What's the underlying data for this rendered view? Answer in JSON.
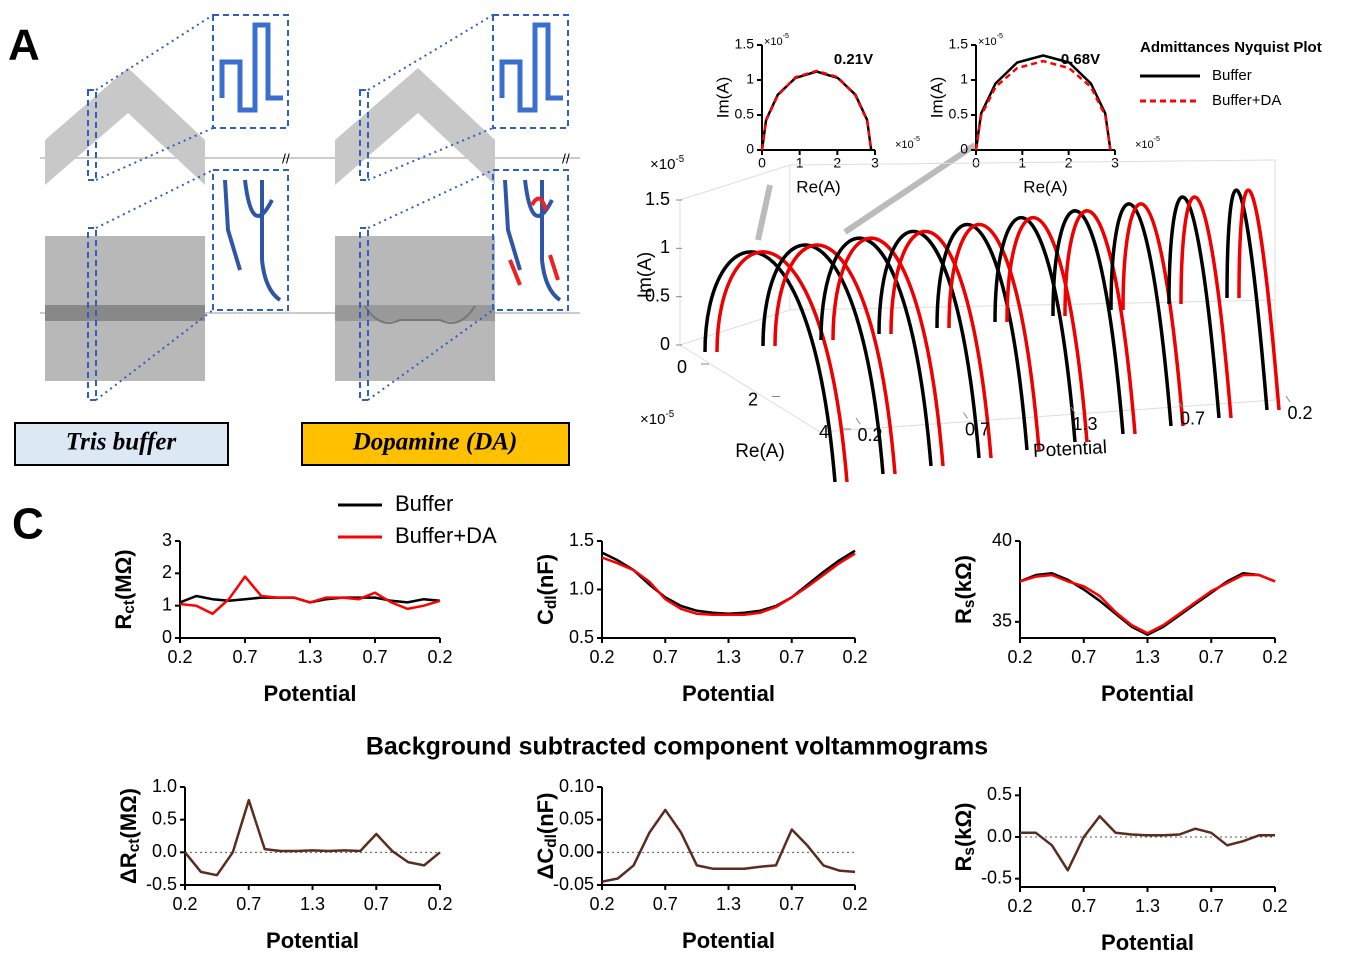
{
  "panel_labels": [
    "A",
    "C"
  ],
  "section_title": "Background subtracted component voltammograms",
  "panel_a": {
    "conditions": [
      "Tris buffer",
      "Dopamine (DA)"
    ],
    "legend": {
      "title": "Admittances Nyquist Plot",
      "items": [
        {
          "name": "Buffer",
          "color": "#000000",
          "dash": false
        },
        {
          "name": "Buffer+DA",
          "color": "#ff0000",
          "dash": true
        }
      ]
    },
    "insets": [
      {
        "type": "line",
        "annotation": "0.21V",
        "xlabel": "Re(A)",
        "ylabel": "Im(A)",
        "exponent_label": [
          "×10",
          "-5"
        ],
        "xlim": [
          0,
          3
        ],
        "ylim": [
          0,
          1.5
        ],
        "xticks": [
          0,
          1,
          2,
          3
        ],
        "yticks": [
          0,
          0.5,
          1,
          1.5
        ],
        "x": [
          0,
          0.11,
          0.42,
          0.89,
          1.45,
          2.01,
          2.48,
          2.79,
          2.9
        ],
        "series": [
          {
            "color": "#000000",
            "dash": false,
            "values": [
              0,
              0.43,
              0.79,
              1.03,
              1.12,
              1.03,
              0.79,
              0.43,
              0
            ]
          },
          {
            "color": "#ff0000",
            "dash": true,
            "values": [
              0,
              0.42,
              0.78,
              1.04,
              1.13,
              1.04,
              0.78,
              0.42,
              0
            ]
          }
        ]
      },
      {
        "type": "line",
        "annotation": "0.68V",
        "xlabel": "Re(A)",
        "ylabel": "Im(A)",
        "exponent_label": [
          "×10",
          "-5"
        ],
        "xlim": [
          0,
          3
        ],
        "ylim": [
          0,
          1.5
        ],
        "xticks": [
          0,
          1,
          2,
          3
        ],
        "yticks": [
          0,
          0.5,
          1,
          1.5
        ],
        "x": [
          0,
          0.11,
          0.42,
          0.89,
          1.45,
          2.01,
          2.48,
          2.79,
          2.9
        ],
        "series": [
          {
            "color": "#000000",
            "dash": false,
            "values": [
              0,
              0.52,
              0.95,
              1.25,
              1.35,
              1.25,
              0.95,
              0.52,
              0
            ]
          },
          {
            "color": "#ff0000",
            "dash": true,
            "values": [
              0,
              0.49,
              0.9,
              1.17,
              1.27,
              1.17,
              0.9,
              0.49,
              0
            ]
          }
        ]
      }
    ],
    "nyquist_3d": {
      "zlabel": "Im(A)",
      "ylabel": "Re(A)",
      "xlabel": "Potential",
      "exponent_label": [
        "×10",
        "-5"
      ],
      "zlim": [
        0,
        1.5
      ],
      "zticks": [
        0,
        0.5,
        1,
        1.5
      ],
      "ylim": [
        0,
        4
      ],
      "yticks": [
        0,
        2,
        4
      ],
      "xlim": [
        0,
        4
      ],
      "xticks": [
        {
          "value": 0,
          "label": "0.2"
        },
        {
          "value": 1,
          "label": "0.7"
        },
        {
          "value": 2,
          "label": "1.3"
        },
        {
          "value": 3,
          "label": "0.7"
        },
        {
          "value": 4,
          "label": "0.2"
        }
      ]
    }
  },
  "chart_data": [
    {
      "type": "line",
      "ylabel": [
        "R",
        "ct",
        "(MΩ)"
      ],
      "xlabel": "Potential",
      "xlim": [
        0,
        4
      ],
      "ylim": [
        0,
        3
      ],
      "yticks": [
        0,
        1,
        2,
        3
      ],
      "xticks": [
        {
          "value": 0,
          "label": "0.2"
        },
        {
          "value": 1,
          "label": "0.7"
        },
        {
          "value": 2,
          "label": "1.3"
        },
        {
          "value": 3,
          "label": "0.7"
        },
        {
          "value": 4,
          "label": "0.2"
        }
      ],
      "x": [
        0,
        0.25,
        0.5,
        0.75,
        1,
        1.25,
        1.5,
        1.75,
        2,
        2.25,
        2.5,
        2.75,
        3,
        3.25,
        3.5,
        3.75,
        4
      ],
      "series": [
        {
          "name": "Buffer",
          "color": "#000000",
          "values": [
            1.1,
            1.3,
            1.2,
            1.15,
            1.2,
            1.25,
            1.25,
            1.25,
            1.1,
            1.2,
            1.25,
            1.25,
            1.25,
            1.15,
            1.1,
            1.2,
            1.15
          ]
        },
        {
          "name": "Buffer+DA",
          "color": "#ff0000",
          "values": [
            1.05,
            1.0,
            0.75,
            1.2,
            1.9,
            1.3,
            1.25,
            1.25,
            1.1,
            1.25,
            1.25,
            1.2,
            1.4,
            1.1,
            0.9,
            1.0,
            1.15
          ]
        }
      ]
    },
    {
      "type": "line",
      "ylabel": [
        "C",
        "dl",
        "(nF)"
      ],
      "xlabel": "Potential",
      "xlim": [
        0,
        4
      ],
      "ylim": [
        0.5,
        1.5
      ],
      "yticks": [
        0.5,
        {
          "value": 1,
          "label": "1.0"
        },
        1.5
      ],
      "xticks": [
        {
          "value": 0,
          "label": "0.2"
        },
        {
          "value": 1,
          "label": "0.7"
        },
        {
          "value": 2,
          "label": "1.3"
        },
        {
          "value": 3,
          "label": "0.7"
        },
        {
          "value": 4,
          "label": "0.2"
        }
      ],
      "x": [
        0,
        0.25,
        0.5,
        0.75,
        1,
        1.25,
        1.5,
        1.75,
        2,
        2.25,
        2.5,
        2.75,
        3,
        3.25,
        3.5,
        3.75,
        4
      ],
      "series": [
        {
          "color": "#000000",
          "values": [
            1.38,
            1.3,
            1.2,
            1.05,
            0.92,
            0.83,
            0.78,
            0.76,
            0.75,
            0.76,
            0.78,
            0.83,
            0.92,
            1.05,
            1.18,
            1.3,
            1.4
          ]
        },
        {
          "color": "#ff0000",
          "values": [
            1.33,
            1.27,
            1.2,
            1.08,
            0.9,
            0.8,
            0.75,
            0.74,
            0.74,
            0.74,
            0.76,
            0.82,
            0.92,
            1.03,
            1.15,
            1.27,
            1.37
          ]
        }
      ]
    },
    {
      "type": "line",
      "ylabel": [
        "R",
        "s",
        "(kΩ)"
      ],
      "xlabel": "Potential",
      "xlim": [
        0,
        4
      ],
      "ylim": [
        34,
        40
      ],
      "yticks": [
        35,
        40
      ],
      "xticks": [
        {
          "value": 0,
          "label": "0.2"
        },
        {
          "value": 1,
          "label": "0.7"
        },
        {
          "value": 2,
          "label": "1.3"
        },
        {
          "value": 3,
          "label": "0.7"
        },
        {
          "value": 4,
          "label": "0.2"
        }
      ],
      "x": [
        0,
        0.25,
        0.5,
        0.75,
        1,
        1.25,
        1.5,
        1.75,
        2,
        2.25,
        2.5,
        2.75,
        3,
        3.25,
        3.5,
        3.75,
        4
      ],
      "series": [
        {
          "color": "#000000",
          "values": [
            37.5,
            37.9,
            38,
            37.6,
            37,
            36.3,
            35.5,
            34.7,
            34.2,
            34.7,
            35.4,
            36.1,
            36.8,
            37.5,
            38,
            37.9,
            37.5
          ]
        },
        {
          "color": "#ff0000",
          "values": [
            37.5,
            37.8,
            37.9,
            37.5,
            37.2,
            36.6,
            35.6,
            34.8,
            34.3,
            34.8,
            35.5,
            36.2,
            36.9,
            37.4,
            37.9,
            37.9,
            37.5
          ]
        }
      ]
    },
    {
      "type": "line",
      "ylabel": [
        "ΔR",
        "ct",
        "(MΩ)"
      ],
      "xlabel": "Potential",
      "xlim": [
        0,
        4
      ],
      "ylim": [
        -0.5,
        1
      ],
      "zero_line": true,
      "yticks": [
        -0.5,
        {
          "value": 0,
          "label": "0.0"
        },
        0.5,
        {
          "value": 1,
          "label": "1.0"
        }
      ],
      "xticks": [
        {
          "value": 0,
          "label": "0.2"
        },
        {
          "value": 1,
          "label": "0.7"
        },
        {
          "value": 2,
          "label": "1.3"
        },
        {
          "value": 3,
          "label": "0.7"
        },
        {
          "value": 4,
          "label": "0.2"
        }
      ],
      "x": [
        0,
        0.25,
        0.5,
        0.75,
        1,
        1.25,
        1.5,
        1.75,
        2,
        2.25,
        2.5,
        2.75,
        3,
        3.25,
        3.5,
        3.75,
        4
      ],
      "series": [
        {
          "color": "#5b2c20",
          "values": [
            0,
            -0.3,
            -0.35,
            0,
            0.8,
            0.05,
            0.02,
            0.02,
            0.03,
            0.02,
            0.03,
            0.02,
            0.28,
            0.02,
            -0.15,
            -0.2,
            0
          ]
        }
      ]
    },
    {
      "type": "line",
      "ylabel": [
        "ΔC",
        "dl",
        "(nF)"
      ],
      "xlabel": "Potential",
      "xlim": [
        0,
        4
      ],
      "ylim": [
        -0.05,
        0.1
      ],
      "zero_line": true,
      "yticks": [
        -0.05,
        {
          "value": 0,
          "label": "0.00"
        },
        0.05,
        {
          "value": 0.1,
          "label": "0.10"
        }
      ],
      "xticks": [
        {
          "value": 0,
          "label": "0.2"
        },
        {
          "value": 1,
          "label": "0.7"
        },
        {
          "value": 2,
          "label": "1.3"
        },
        {
          "value": 3,
          "label": "0.7"
        },
        {
          "value": 4,
          "label": "0.2"
        }
      ],
      "x": [
        0,
        0.25,
        0.5,
        0.75,
        1,
        1.25,
        1.5,
        1.75,
        2,
        2.25,
        2.5,
        2.75,
        3,
        3.25,
        3.5,
        3.75,
        4
      ],
      "series": [
        {
          "color": "#5b2c20",
          "values": [
            -0.045,
            -0.04,
            -0.02,
            0.03,
            0.065,
            0.03,
            -0.02,
            -0.025,
            -0.025,
            -0.025,
            -0.022,
            -0.02,
            0.035,
            0.01,
            -0.02,
            -0.028,
            -0.03
          ]
        }
      ]
    },
    {
      "type": "line",
      "ylabel": [
        "R",
        "s",
        "(kΩ)"
      ],
      "xlabel": "Potential",
      "xlim": [
        0,
        4
      ],
      "ylim": [
        -0.6,
        0.6
      ],
      "zero_line": true,
      "yticks": [
        -0.5,
        {
          "value": 0,
          "label": "0.0"
        },
        0.5
      ],
      "xticks": [
        {
          "value": 0,
          "label": "0.2"
        },
        {
          "value": 1,
          "label": "0.7"
        },
        {
          "value": 2,
          "label": "1.3"
        },
        {
          "value": 3,
          "label": "0.7"
        },
        {
          "value": 4,
          "label": "0.2"
        }
      ],
      "x": [
        0,
        0.25,
        0.5,
        0.75,
        1,
        1.25,
        1.5,
        1.75,
        2,
        2.25,
        2.5,
        2.75,
        3,
        3.25,
        3.5,
        3.75,
        4
      ],
      "series": [
        {
          "color": "#5b2c20",
          "values": [
            0.05,
            0.05,
            -0.1,
            -0.4,
            0,
            0.25,
            0.05,
            0.03,
            0.02,
            0.02,
            0.03,
            0.1,
            0.05,
            -0.1,
            -0.05,
            0.02,
            0.02
          ]
        }
      ]
    }
  ]
}
